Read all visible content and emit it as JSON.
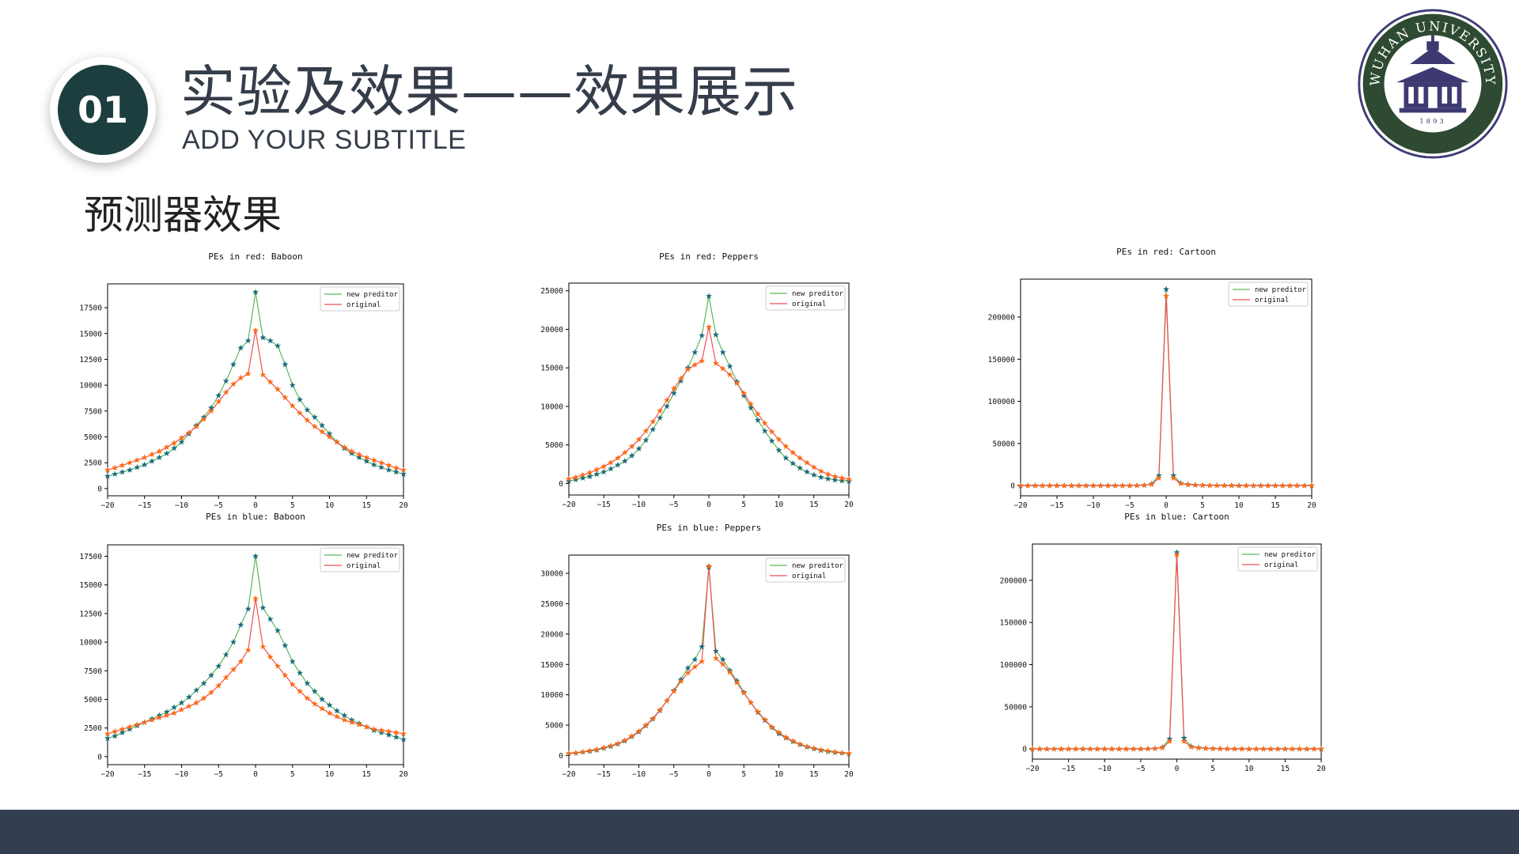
{
  "header": {
    "badge_number": "01",
    "title": "实验及效果——效果展示",
    "subtitle": "ADD YOUR SUBTITLE",
    "section_title": "预测器效果"
  },
  "logo": {
    "ring_text": "WUHAN UNIVERSITY",
    "year": "1893",
    "icon": "university-seal-icon"
  },
  "colors": {
    "badge": "#1d3e3e",
    "title_text": "#353d4a",
    "footer": "#333e50",
    "series_new": "#5cb85c",
    "series_original": "#f05050",
    "marker_new": "#1a6b7e",
    "marker_original": "#ff6a10"
  },
  "chart_data": [
    {
      "type": "line",
      "title": "PEs in red: Baboon",
      "xlim": [
        -20,
        20
      ],
      "xticks": [
        -20,
        -15,
        -10,
        -5,
        0,
        5,
        10,
        15,
        20
      ],
      "ylim": [
        -700,
        19800
      ],
      "yticks": [
        0,
        2500,
        5000,
        7500,
        10000,
        12500,
        15000,
        17500
      ],
      "legend_position": "top-right",
      "series": [
        {
          "name": "new preditor",
          "values": [
            1200,
            1400,
            1600,
            1800,
            2050,
            2300,
            2650,
            3000,
            3400,
            3900,
            4500,
            5300,
            6100,
            6900,
            7800,
            9000,
            10400,
            12000,
            13600,
            14300,
            19000,
            14600,
            14300,
            13800,
            12000,
            10000,
            8600,
            7600,
            6900,
            6100,
            5300,
            4500,
            3900,
            3400,
            3000,
            2650,
            2300,
            2050,
            1800,
            1600,
            1400
          ]
        },
        {
          "name": "original",
          "values": [
            1800,
            2000,
            2250,
            2500,
            2750,
            3000,
            3300,
            3600,
            4000,
            4400,
            4900,
            5400,
            6000,
            6700,
            7500,
            8400,
            9300,
            10100,
            10700,
            11100,
            15300,
            11000,
            10300,
            9600,
            8800,
            8000,
            7300,
            6600,
            6000,
            5500,
            5000,
            4500,
            4000,
            3600,
            3300,
            3000,
            2750,
            2500,
            2250,
            2000,
            1800
          ]
        }
      ]
    },
    {
      "type": "line",
      "title": "PEs in red: Peppers",
      "xlim": [
        -20,
        20
      ],
      "xticks": [
        -20,
        -15,
        -10,
        -5,
        0,
        5,
        10,
        15,
        20
      ],
      "ylim": [
        -1500,
        26000
      ],
      "yticks": [
        0,
        5000,
        10000,
        15000,
        20000,
        25000
      ],
      "legend_position": "top-right",
      "series": [
        {
          "name": "new preditor",
          "values": [
            300,
            500,
            700,
            900,
            1200,
            1500,
            1900,
            2400,
            2900,
            3600,
            4500,
            5600,
            7000,
            8500,
            10000,
            11700,
            13300,
            15000,
            17000,
            19200,
            24300,
            19300,
            17000,
            15200,
            13200,
            11400,
            9800,
            8200,
            6800,
            5500,
            4300,
            3300,
            2600,
            2000,
            1500,
            1100,
            800,
            600,
            450,
            350,
            300
          ]
        },
        {
          "name": "original",
          "values": [
            600,
            800,
            1100,
            1400,
            1800,
            2200,
            2700,
            3300,
            4000,
            4800,
            5700,
            6800,
            8000,
            9400,
            10800,
            12300,
            13600,
            14800,
            15400,
            15900,
            20300,
            15600,
            14900,
            14100,
            13000,
            11700,
            10300,
            9000,
            7800,
            6700,
            5700,
            4800,
            4000,
            3300,
            2700,
            2100,
            1600,
            1200,
            900,
            700,
            550
          ]
        }
      ]
    },
    {
      "type": "line",
      "title": "PEs in red: Cartoon",
      "xlim": [
        -20,
        20
      ],
      "xticks": [
        -20,
        -15,
        -10,
        -5,
        0,
        5,
        10,
        15,
        20
      ],
      "ylim": [
        -12000,
        245000
      ],
      "yticks": [
        0,
        50000,
        100000,
        150000,
        200000
      ],
      "legend_position": "top-right",
      "series": [
        {
          "name": "new preditor",
          "values": [
            0,
            0,
            0,
            0,
            0,
            0,
            0,
            0,
            0,
            0,
            0,
            0,
            0,
            0,
            0,
            0,
            200,
            500,
            2000,
            12000,
            233000,
            12000,
            3000,
            1500,
            800,
            500,
            300,
            200,
            100,
            100,
            0,
            0,
            0,
            0,
            0,
            0,
            0,
            0,
            0,
            0,
            0
          ]
        },
        {
          "name": "original",
          "values": [
            0,
            0,
            0,
            0,
            0,
            0,
            0,
            0,
            0,
            0,
            0,
            0,
            0,
            0,
            0,
            0,
            200,
            500,
            1500,
            9000,
            225000,
            9000,
            2500,
            1200,
            700,
            400,
            250,
            150,
            100,
            100,
            0,
            0,
            0,
            0,
            0,
            0,
            0,
            0,
            0,
            0,
            0
          ]
        }
      ]
    },
    {
      "type": "line",
      "title": "PEs in blue: Baboon",
      "xlim": [
        -20,
        20
      ],
      "xticks": [
        -20,
        -15,
        -10,
        -5,
        0,
        5,
        10,
        15,
        20
      ],
      "ylim": [
        -700,
        18500
      ],
      "yticks": [
        0,
        2500,
        5000,
        7500,
        10000,
        12500,
        15000,
        17500
      ],
      "legend_position": "top-right",
      "series": [
        {
          "name": "new preditor",
          "values": [
            1600,
            1800,
            2100,
            2400,
            2700,
            3000,
            3300,
            3600,
            3900,
            4300,
            4700,
            5200,
            5800,
            6400,
            7100,
            7900,
            8900,
            10000,
            11500,
            12900,
            17500,
            13000,
            12000,
            11000,
            9700,
            8300,
            7300,
            6400,
            5700,
            5000,
            4500,
            4000,
            3600,
            3200,
            2900,
            2600,
            2300,
            2100,
            1900,
            1700,
            1500
          ]
        },
        {
          "name": "original",
          "values": [
            2000,
            2200,
            2400,
            2600,
            2800,
            3000,
            3200,
            3400,
            3600,
            3800,
            4100,
            4400,
            4700,
            5100,
            5600,
            6200,
            6900,
            7600,
            8300,
            9300,
            13800,
            9600,
            8700,
            7900,
            7100,
            6300,
            5700,
            5100,
            4600,
            4200,
            3800,
            3500,
            3200,
            3000,
            2800,
            2600,
            2400,
            2300,
            2200,
            2100,
            2000
          ]
        }
      ]
    },
    {
      "type": "line",
      "title": "PEs in blue: Peppers",
      "xlim": [
        -20,
        20
      ],
      "xticks": [
        -20,
        -15,
        -10,
        -5,
        0,
        5,
        10,
        15,
        20
      ],
      "ylim": [
        -1500,
        33000
      ],
      "yticks": [
        0,
        5000,
        10000,
        15000,
        20000,
        25000,
        30000
      ],
      "legend_position": "top-right",
      "series": [
        {
          "name": "new preditor",
          "values": [
            300,
            400,
            550,
            700,
            900,
            1200,
            1500,
            1900,
            2400,
            3100,
            3900,
            4900,
            6000,
            7400,
            9000,
            10700,
            12500,
            14400,
            15800,
            17900,
            31000,
            17200,
            15800,
            14000,
            12300,
            10400,
            8700,
            7100,
            5800,
            4600,
            3600,
            2900,
            2300,
            1800,
            1400,
            1100,
            850,
            650,
            500,
            400,
            300
          ]
        },
        {
          "name": "original",
          "values": [
            350,
            450,
            600,
            800,
            1000,
            1300,
            1600,
            2000,
            2500,
            3200,
            4000,
            5000,
            6100,
            7500,
            9000,
            10600,
            12200,
            13600,
            14600,
            15500,
            31200,
            16000,
            15000,
            13700,
            12000,
            10300,
            8700,
            7200,
            5900,
            4700,
            3800,
            3000,
            2400,
            1900,
            1500,
            1200,
            950,
            750,
            600,
            450,
            350
          ]
        }
      ]
    },
    {
      "type": "line",
      "title": "PEs in blue: Cartoon",
      "xlim": [
        -20,
        20
      ],
      "xticks": [
        -20,
        -15,
        -10,
        -5,
        0,
        5,
        10,
        15,
        20
      ],
      "ylim": [
        -12000,
        243000
      ],
      "yticks": [
        0,
        50000,
        100000,
        150000,
        200000
      ],
      "legend_position": "top-right",
      "series": [
        {
          "name": "new preditor",
          "values": [
            0,
            0,
            0,
            0,
            0,
            0,
            0,
            0,
            0,
            0,
            0,
            0,
            0,
            0,
            0,
            0,
            200,
            500,
            2000,
            12000,
            233000,
            13000,
            3000,
            1500,
            800,
            500,
            300,
            200,
            100,
            100,
            0,
            0,
            0,
            0,
            0,
            0,
            0,
            0,
            0,
            0,
            0
          ]
        },
        {
          "name": "original",
          "values": [
            0,
            0,
            0,
            0,
            0,
            0,
            0,
            0,
            0,
            0,
            0,
            0,
            0,
            0,
            0,
            0,
            200,
            500,
            1500,
            9000,
            230000,
            9000,
            2500,
            1200,
            700,
            400,
            250,
            150,
            100,
            100,
            0,
            0,
            0,
            0,
            0,
            0,
            0,
            0,
            0,
            0,
            0
          ]
        }
      ]
    }
  ]
}
